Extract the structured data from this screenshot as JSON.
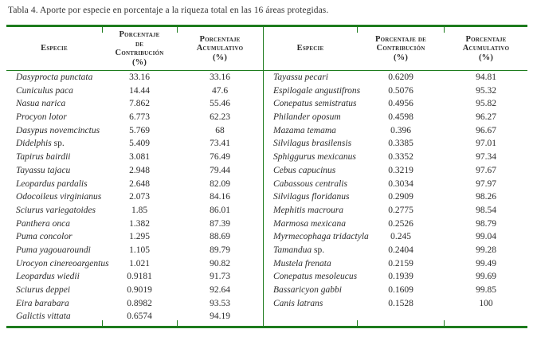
{
  "title": "Tabla 4. Aporte por especie en porcentaje a la riqueza total en las 16 áreas protegidas.",
  "columns": {
    "especie": "Especie",
    "contribucion_left": [
      "Porcentaje",
      "de",
      "Contribución",
      "(%)"
    ],
    "contribucion_right": [
      "Porcentaje de",
      "Contribución",
      "(%)"
    ],
    "acumulativo": [
      "Porcentaje",
      "Acumulativo",
      "(%)"
    ]
  },
  "left_rows": [
    [
      "Dasyprocta punctata",
      "33.16",
      "33.16"
    ],
    [
      "Cuniculus paca",
      "14.44",
      "47.6"
    ],
    [
      "Nasua narica",
      "7.862",
      "55.46"
    ],
    [
      "Procyon lotor",
      "6.773",
      "62.23"
    ],
    [
      "Dasypus novemcinctus",
      "5.769",
      "68"
    ],
    [
      "Didelphis sp.",
      "5.409",
      "73.41"
    ],
    [
      "Tapirus bairdii",
      "3.081",
      "76.49"
    ],
    [
      "Tayassu tajacu",
      "2.948",
      "79.44"
    ],
    [
      "Leopardus pardalis",
      "2.648",
      "82.09"
    ],
    [
      "Odocoileus virginianus",
      "2.073",
      "84.16"
    ],
    [
      "Sciurus variegatoides",
      "1.85",
      "86.01"
    ],
    [
      "Panthera onca",
      "1.382",
      "87.39"
    ],
    [
      "Puma concolor",
      "1.295",
      "88.69"
    ],
    [
      "Puma yagouaroundi",
      "1.105",
      "89.79"
    ],
    [
      "Urocyon cinereoargentus",
      "1.021",
      "90.82"
    ],
    [
      "Leopardus wiedii",
      "0.9181",
      "91.73"
    ],
    [
      "Sciurus deppei",
      "0.9019",
      "92.64"
    ],
    [
      "Eira barabara",
      "0.8982",
      "93.53"
    ],
    [
      "Galictis vittata",
      "0.6574",
      "94.19"
    ]
  ],
  "right_rows": [
    [
      "Tayassu pecari",
      "0.6209",
      "94.81"
    ],
    [
      "Espilogale angustifrons",
      "0.5076",
      "95.32"
    ],
    [
      "Conepatus semistratus",
      "0.4956",
      "95.82"
    ],
    [
      "Philander oposum",
      "0.4598",
      "96.27"
    ],
    [
      "Mazama temama",
      "0.396",
      "96.67"
    ],
    [
      "Silvilagus brasilensis",
      "0.3385",
      "97.01"
    ],
    [
      "Sphiggurus mexicanus",
      "0.3352",
      "97.34"
    ],
    [
      "Cebus capucinus",
      "0.3219",
      "97.67"
    ],
    [
      "Cabassous centralis",
      "0.3034",
      "97.97"
    ],
    [
      "Silvilagus floridanus",
      "0.2909",
      "98.26"
    ],
    [
      "Mephitis macroura",
      "0.2775",
      "98.54"
    ],
    [
      "Marmosa mexicana",
      "0.2526",
      "98.79"
    ],
    [
      "Myrmecophaga tridactyla",
      "0.245",
      "99.04"
    ],
    [
      "Tamandua sp.",
      "0.2404",
      "99.28"
    ],
    [
      "Mustela frenata",
      "0.2159",
      "99.49"
    ],
    [
      "Conepatus mesoleucus",
      "0.1939",
      "99.69"
    ],
    [
      "Bassaricyon gabbi",
      "0.1609",
      "99.85"
    ],
    [
      "Canis latrans",
      "0.1528",
      "100"
    ]
  ],
  "colors": {
    "rule_green": "#1e7c1e",
    "text": "#2b2b2b"
  }
}
